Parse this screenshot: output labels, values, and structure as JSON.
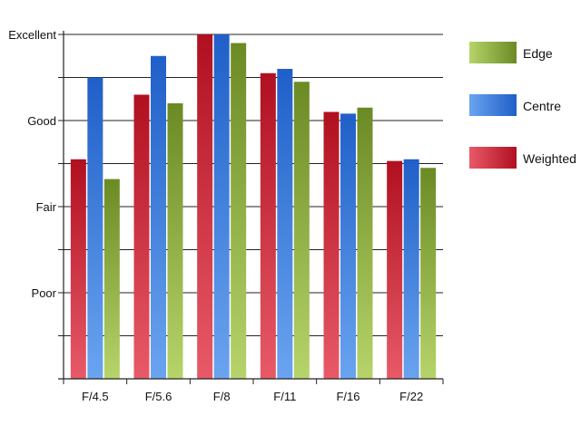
{
  "chart_data": {
    "type": "bar",
    "categories": [
      "F/4.5",
      "F/5.6",
      "F/8",
      "F/11",
      "F/16",
      "F/22"
    ],
    "y_tick_labels": [
      "Poor",
      "Fair",
      "Good",
      "Excellent"
    ],
    "y_tick_values": [
      1,
      2,
      3,
      4
    ],
    "ylim": [
      0,
      4
    ],
    "grid": true,
    "legend_position": "right",
    "series": [
      {
        "name": "Weighted",
        "values": [
          2.55,
          3.3,
          4.0,
          3.55,
          3.1,
          2.53
        ],
        "color_top": "#b01020",
        "color_bottom": "#e85a68"
      },
      {
        "name": "Centre",
        "values": [
          3.5,
          3.75,
          4.0,
          3.6,
          3.08,
          2.55
        ],
        "color_top": "#1f5fc8",
        "color_bottom": "#6aa4f0"
      },
      {
        "name": "Edge",
        "values": [
          2.32,
          3.2,
          3.9,
          3.45,
          3.15,
          2.45
        ],
        "color_top": "#6b8a24",
        "color_bottom": "#b6d46a"
      }
    ],
    "legend_order": [
      "Edge",
      "Centre",
      "Weighted"
    ]
  }
}
